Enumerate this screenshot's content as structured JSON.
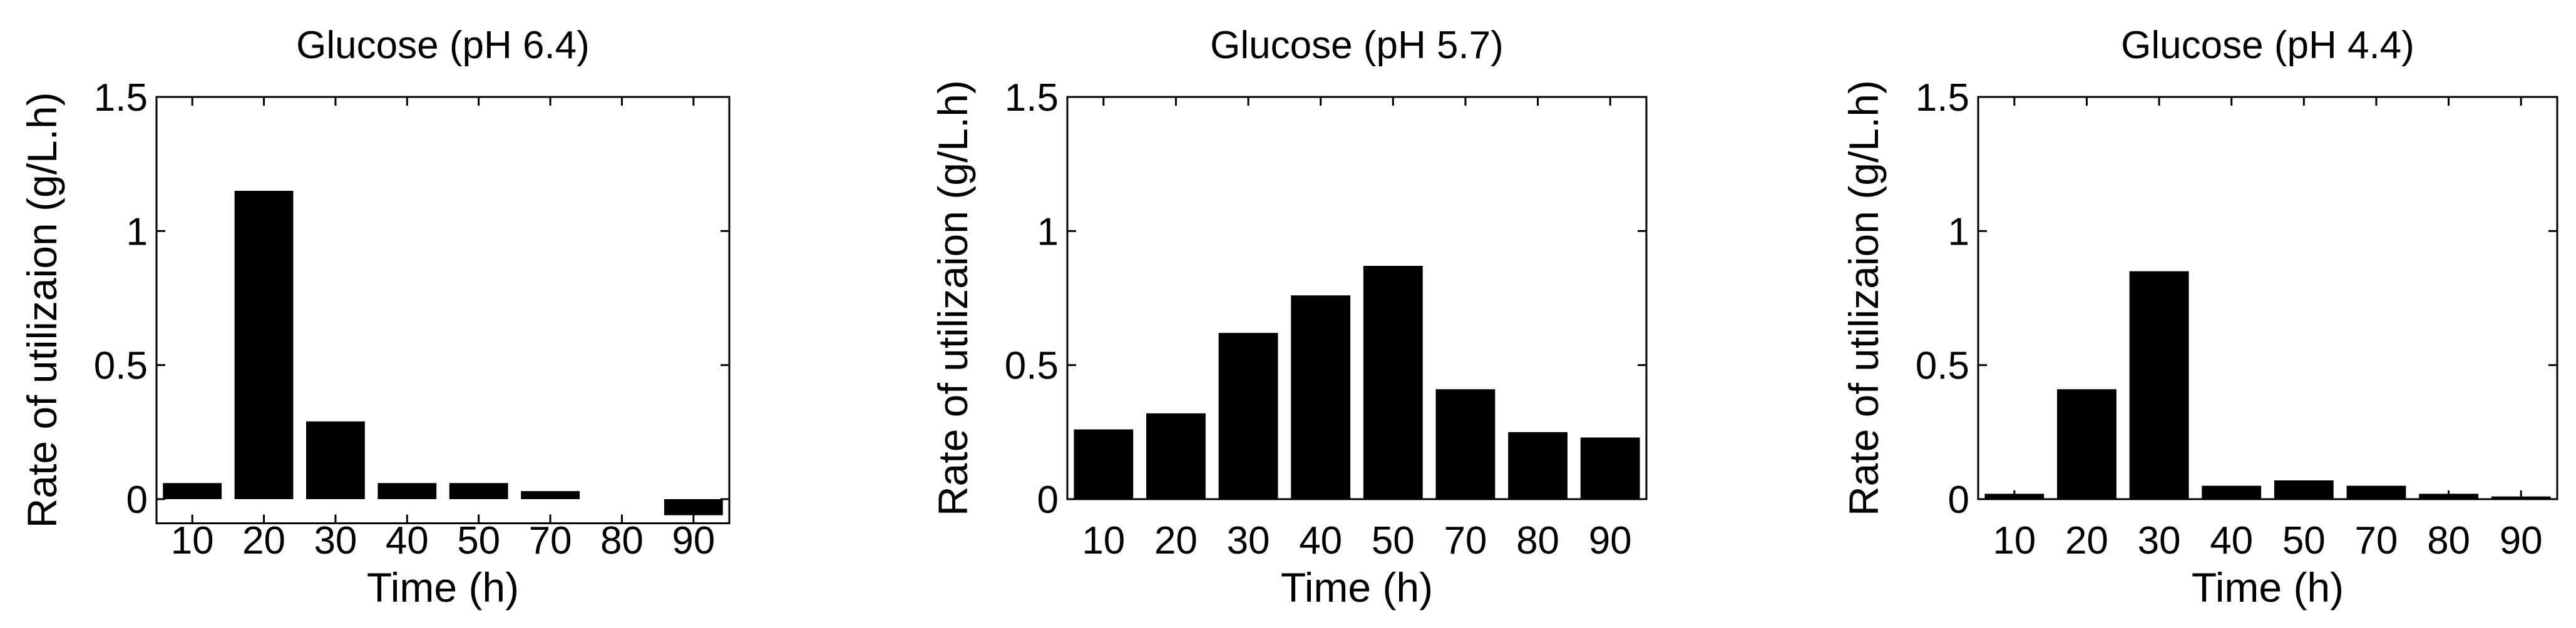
{
  "chart_data": [
    {
      "type": "bar",
      "title": "Glucose (pH 6.4)",
      "xlabel": "Time (h)",
      "ylabel": "Rate of utilizaion (g/L.h)",
      "categories": [
        "10",
        "20",
        "30",
        "40",
        "50",
        "70",
        "80",
        "90"
      ],
      "values": [
        0.06,
        1.15,
        0.29,
        0.06,
        0.06,
        0.03,
        0.0,
        -0.06
      ],
      "ylim": [
        -0.09,
        1.5
      ],
      "yticks": [
        0,
        0.5,
        1,
        1.5
      ],
      "ytick_labels": [
        "0",
        "0.5",
        "1",
        "1.5"
      ],
      "grid": false,
      "bar_color": "#000000"
    },
    {
      "type": "bar",
      "title": "Glucose (pH 5.7)",
      "xlabel": "Time (h)",
      "ylabel": "Rate of utilizaion (g/L.h)",
      "categories": [
        "10",
        "20",
        "30",
        "40",
        "50",
        "70",
        "80",
        "90"
      ],
      "values": [
        0.26,
        0.32,
        0.62,
        0.76,
        0.87,
        0.41,
        0.25,
        0.23
      ],
      "ylim": [
        0,
        1.5
      ],
      "yticks": [
        0,
        0.5,
        1,
        1.5
      ],
      "ytick_labels": [
        "0",
        "0.5",
        "1",
        "1.5"
      ],
      "grid": false,
      "bar_color": "#000000"
    },
    {
      "type": "bar",
      "title": "Glucose (pH 4.4)",
      "xlabel": "Time (h)",
      "ylabel": "Rate of utilizaion (g/L.h)",
      "categories": [
        "10",
        "20",
        "30",
        "40",
        "50",
        "70",
        "80",
        "90"
      ],
      "values": [
        0.02,
        0.41,
        0.85,
        0.05,
        0.07,
        0.05,
        0.02,
        0.01
      ],
      "ylim": [
        0,
        1.5
      ],
      "yticks": [
        0,
        0.5,
        1,
        1.5
      ],
      "ytick_labels": [
        "0",
        "0.5",
        "1",
        "1.5"
      ],
      "grid": false,
      "bar_color": "#000000"
    }
  ]
}
